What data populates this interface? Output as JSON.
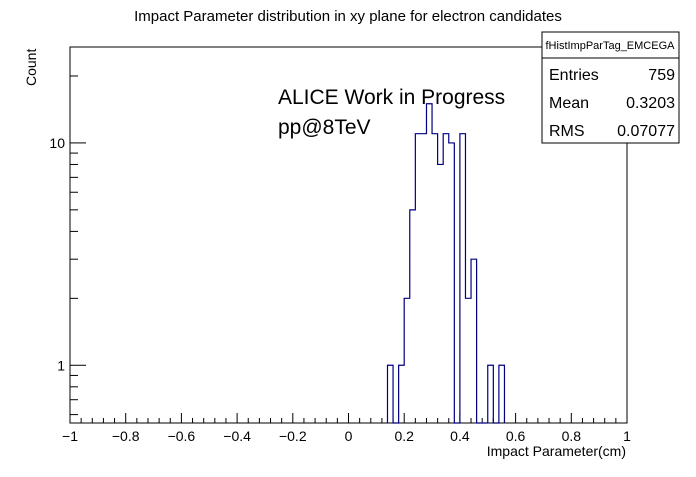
{
  "chart_data": {
    "type": "bar",
    "title": "Impact Parameter distribution in xy plane for electron candidates",
    "xlabel": "Impact Parameter(cm)",
    "ylabel": "Count",
    "xlim": [
      -1,
      1
    ],
    "ylim": [
      0.55,
      27
    ],
    "y_scale": "log",
    "bin_width": 0.02,
    "line_color": "#000080",
    "x_ticks": [
      "−1",
      "−0.8",
      "−0.6",
      "−0.4",
      "−0.2",
      "0",
      "0.2",
      "0.4",
      "0.6",
      "0.8",
      "1"
    ],
    "x_tick_values": [
      -1,
      -0.8,
      -0.6,
      -0.4,
      -0.2,
      0,
      0.2,
      0.4,
      0.6,
      0.8,
      1
    ],
    "y_ticks": [
      "1",
      "10"
    ],
    "y_tick_values": [
      1,
      10
    ],
    "bins": [
      {
        "x": 0.14,
        "count": 1
      },
      {
        "x": 0.16,
        "count": 0
      },
      {
        "x": 0.18,
        "count": 1
      },
      {
        "x": 0.2,
        "count": 2
      },
      {
        "x": 0.22,
        "count": 5
      },
      {
        "x": 0.24,
        "count": 11
      },
      {
        "x": 0.26,
        "count": 11
      },
      {
        "x": 0.28,
        "count": 15
      },
      {
        "x": 0.3,
        "count": 11
      },
      {
        "x": 0.32,
        "count": 8
      },
      {
        "x": 0.34,
        "count": 11
      },
      {
        "x": 0.36,
        "count": 10
      },
      {
        "x": 0.38,
        "count": 0
      },
      {
        "x": 0.4,
        "count": 11
      },
      {
        "x": 0.42,
        "count": 2
      },
      {
        "x": 0.44,
        "count": 3
      },
      {
        "x": 0.46,
        "count": 0
      },
      {
        "x": 0.48,
        "count": 0
      },
      {
        "x": 0.5,
        "count": 1
      },
      {
        "x": 0.52,
        "count": 0
      },
      {
        "x": 0.54,
        "count": 1
      }
    ],
    "annotations": [
      "ALICE Work in Progress",
      "pp@8TeV"
    ],
    "stats_box": {
      "name": "fHistImpParTag_EMCEGA",
      "rows": [
        {
          "key": "Entries",
          "value": "759"
        },
        {
          "key": "Mean",
          "value": "0.3203"
        },
        {
          "key": "RMS",
          "value": "0.07077"
        }
      ]
    }
  }
}
